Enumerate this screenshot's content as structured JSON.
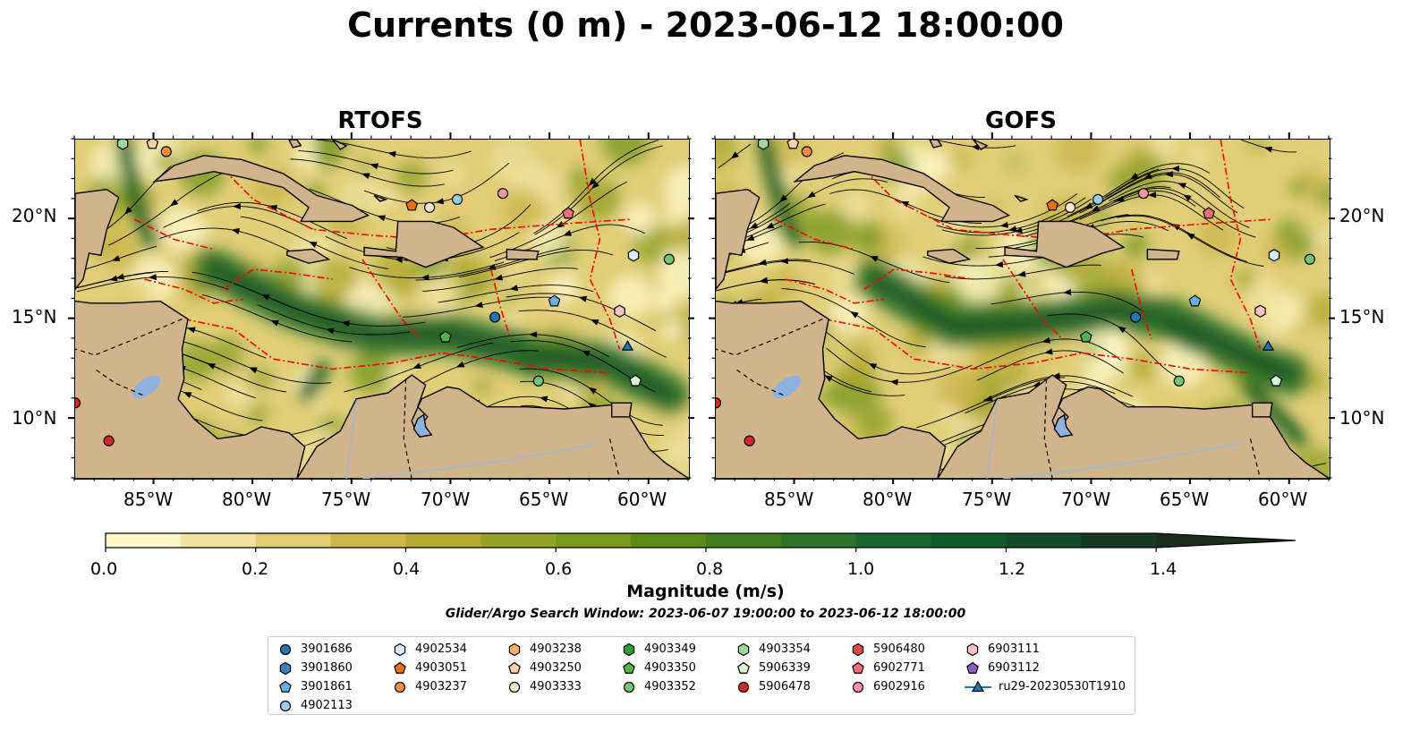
{
  "title": "Currents (0 m) - 2023-06-12 18:00:00",
  "panels": [
    {
      "title": "RTOFS",
      "key": "rtofs"
    },
    {
      "title": "GOFS",
      "key": "gofs"
    }
  ],
  "map": {
    "lon_range": [
      -89,
      -58
    ],
    "lat_range": [
      7,
      24
    ],
    "lon_ticks": [
      "85°W",
      "80°W",
      "75°W",
      "70°W",
      "65°W",
      "60°W"
    ],
    "lat_ticks": [
      "20°N",
      "15°N",
      "10°N"
    ],
    "land_color": "#d2b48c",
    "stream_color": "#000000",
    "eez_color": "#ff0000"
  },
  "colorbar": {
    "label": "Magnitude (m/s)",
    "ticks": [
      "0.0",
      "0.2",
      "0.4",
      "0.6",
      "0.8",
      "1.0",
      "1.2",
      "1.4"
    ],
    "range": [
      0.0,
      1.6
    ],
    "extend": "max",
    "colors": [
      "#fdf6c6",
      "#f0e4a0",
      "#e0ce78",
      "#cdb64c",
      "#b2aa32",
      "#94a22a",
      "#7a9a1e",
      "#5e8a1a",
      "#428020",
      "#2e7328",
      "#18682f",
      "#125a2e",
      "#134a28",
      "#163a22",
      "#1a2e1c"
    ]
  },
  "search_window": "Glider/Argo Search Window: 2023-06-07 19:00:00 to 2023-06-12 18:00:00",
  "legend": [
    {
      "label": "3901686",
      "marker": "circle",
      "color": "#1f77b4"
    },
    {
      "label": "3901860",
      "marker": "hexagon",
      "color": "#3a7fc0"
    },
    {
      "label": "3901861",
      "marker": "pentagon",
      "color": "#6aaee0"
    },
    {
      "label": "4902113",
      "marker": "circle",
      "color": "#9ecae9"
    },
    {
      "label": "4902534",
      "marker": "hexagon",
      "color": "#d6ecf8"
    },
    {
      "label": "4903051",
      "marker": "pentagon",
      "color": "#e6700f"
    },
    {
      "label": "4903237",
      "marker": "circle",
      "color": "#fd8d3c"
    },
    {
      "label": "4903238",
      "marker": "hexagon",
      "color": "#fdae6b"
    },
    {
      "label": "4903250",
      "marker": "pentagon",
      "color": "#fdd0a2"
    },
    {
      "label": "4903333",
      "marker": "circle",
      "color": "#fde6cf"
    },
    {
      "label": "4903349",
      "marker": "hexagon",
      "color": "#2ca02c"
    },
    {
      "label": "4903350",
      "marker": "pentagon",
      "color": "#52b54b"
    },
    {
      "label": "4903352",
      "marker": "circle",
      "color": "#74c476"
    },
    {
      "label": "4903354",
      "marker": "hexagon",
      "color": "#a1d99b"
    },
    {
      "label": "5906339",
      "marker": "pentagon",
      "color": "#d7f5d0"
    },
    {
      "label": "5906478",
      "marker": "circle",
      "color": "#d62728"
    },
    {
      "label": "5906480",
      "marker": "hexagon",
      "color": "#e04a4f"
    },
    {
      "label": "6902771",
      "marker": "pentagon",
      "color": "#ee6d79"
    },
    {
      "label": "6902916",
      "marker": "circle",
      "color": "#f4989c"
    },
    {
      "label": "6903111",
      "marker": "hexagon",
      "color": "#f9c3c6"
    },
    {
      "label": "6903112",
      "marker": "pentagon",
      "color": "#8c5cc1"
    },
    {
      "label": "ru29-20230530T1910",
      "marker": "triangle-line",
      "color": "#1f77b4"
    }
  ],
  "markers": [
    {
      "label": "3901686",
      "lon": -67.8,
      "lat": 15.1
    },
    {
      "label": "3901861",
      "lon": -64.8,
      "lat": 15.9
    },
    {
      "label": "4902113",
      "lon": -69.7,
      "lat": 21.0
    },
    {
      "label": "4902534",
      "lon": -60.8,
      "lat": 18.2
    },
    {
      "label": "4903051",
      "lon": -72.0,
      "lat": 20.7
    },
    {
      "label": "4903237",
      "lon": -84.4,
      "lat": 23.4
    },
    {
      "label": "4903250",
      "lon": -85.1,
      "lat": 23.8
    },
    {
      "label": "4903333",
      "lon": -71.1,
      "lat": 20.6
    },
    {
      "label": "4903350",
      "lon": -70.3,
      "lat": 14.1
    },
    {
      "label": "4903352",
      "lon": -59.0,
      "lat": 18.0
    },
    {
      "label": "4903354",
      "lon": -86.6,
      "lat": 23.8
    },
    {
      "label": "4903352",
      "lon": -65.6,
      "lat": 11.9
    },
    {
      "label": "5906339",
      "lon": -60.7,
      "lat": 11.9
    },
    {
      "label": "5906478",
      "lon": -87.3,
      "lat": 8.9
    },
    {
      "label": "5906478",
      "lon": -89.0,
      "lat": 10.8
    },
    {
      "label": "6902771",
      "lon": -64.1,
      "lat": 20.3
    },
    {
      "label": "6902916",
      "lon": -67.4,
      "lat": 21.3
    },
    {
      "label": "6903111",
      "lon": -61.5,
      "lat": 15.4
    },
    {
      "label": "ru29-20230530T1910",
      "lon": -61.1,
      "lat": 13.6
    }
  ]
}
